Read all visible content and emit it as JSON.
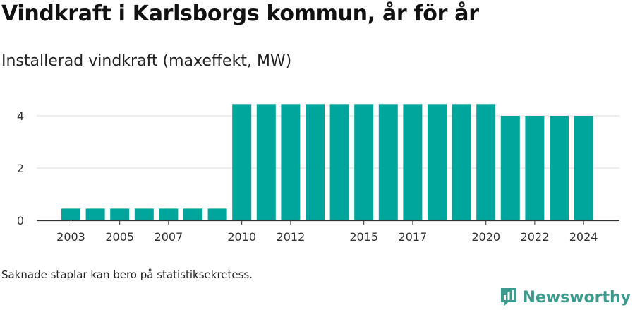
{
  "header": {
    "title": "Vindkraft i Karlsborgs kommun, år för år",
    "subtitle": "Installerad vindkraft (maxeffekt, MW)"
  },
  "footer": {
    "note": "Saknade staplar kan bero på statistiksekretess.",
    "brand": "Newsworthy"
  },
  "colors": {
    "bar": "#00a59b",
    "brand": "#3d9b8e",
    "grid": "#dddddd",
    "axis": "#333333"
  },
  "chart_data": {
    "type": "bar",
    "categories": [
      "2003",
      "2004",
      "2005",
      "2006",
      "2007",
      "2008",
      "2009",
      "2010",
      "2011",
      "2012",
      "2013",
      "2014",
      "2015",
      "2016",
      "2017",
      "2018",
      "2019",
      "2020",
      "2021",
      "2022",
      "2023",
      "2024"
    ],
    "values": [
      0.45,
      0.45,
      0.45,
      0.45,
      0.45,
      0.45,
      0.45,
      4.45,
      4.45,
      4.45,
      4.45,
      4.45,
      4.45,
      4.45,
      4.45,
      4.45,
      4.45,
      4.45,
      4.0,
      4.0,
      4.0,
      4.0
    ],
    "x_tick_labels": [
      "2003",
      "2005",
      "2007",
      "2010",
      "2012",
      "2015",
      "2017",
      "2020",
      "2022",
      "2024"
    ],
    "y_ticks": [
      0,
      2,
      4
    ],
    "ylim": [
      0,
      4.8
    ],
    "grid": true
  }
}
